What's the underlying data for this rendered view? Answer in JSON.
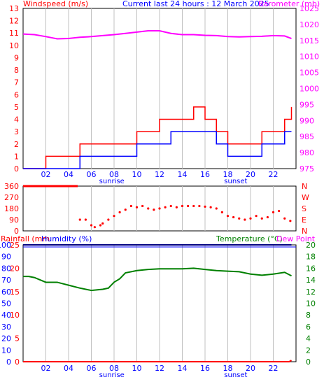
{
  "header": {
    "left_label": "Windspeed (m/s)",
    "center_label": "Current last 24 hours : 12 March 2025",
    "right_label": "Barometer (mb)"
  },
  "bottom_header": {
    "rainfall_label": "Rainfall (mm",
    "humidity_label": "Humidity (%)",
    "temperature_label": "Temperature (°C)",
    "dewpoint_label": "Dew Point"
  },
  "colors": {
    "wind": "#ff0000",
    "gust": "#ff0000",
    "avg": "#0000ff",
    "baro": "#ff00ff",
    "dir": "#ff0000",
    "humidity": "#000080",
    "temperature": "#008000",
    "rain": "#ff0000",
    "axis_left": "#ff0000",
    "axis_right": "#ff00ff"
  },
  "x_axis": {
    "hour_ticks": [
      "02",
      "04",
      "06",
      "08",
      "10",
      "12",
      "14",
      "16",
      "18",
      "20",
      "22"
    ],
    "sunrise_label": "sunrise",
    "sunset_label": "sunset"
  },
  "chart_data": [
    {
      "type": "line",
      "name": "wind-barometer",
      "x_range_hours": [
        0,
        24
      ],
      "left_axis": {
        "label": "Windspeed (m/s)",
        "ticks": [
          "0",
          "1",
          "2",
          "3",
          "4",
          "5",
          "6",
          "7",
          "8",
          "9",
          "10",
          "11",
          "12",
          "13"
        ],
        "ylim": [
          0,
          13
        ]
      },
      "right_axis": {
        "label": "Barometer (mb)",
        "ticks": [
          "975",
          "980",
          "985",
          "990",
          "995",
          "1000",
          "1005",
          "1010",
          "1015",
          "1020",
          "1025"
        ],
        "ylim": [
          975,
          1025
        ]
      },
      "series": [
        {
          "name": "Barometer",
          "x": [
            0,
            1,
            2,
            3,
            4,
            5,
            6,
            7,
            8,
            9,
            10,
            11,
            12,
            13,
            14,
            15,
            16,
            17,
            18,
            19,
            20,
            21,
            22,
            23,
            23.6
          ],
          "values": [
            1017,
            1016.8,
            1016.2,
            1015.5,
            1015.6,
            1016,
            1016.2,
            1016.5,
            1016.8,
            1017.2,
            1017.6,
            1018,
            1018,
            1017.2,
            1016.8,
            1016.8,
            1016.6,
            1016.5,
            1016.2,
            1016.1,
            1016.2,
            1016.3,
            1016.5,
            1016.4,
            1015.6
          ]
        },
        {
          "name": "Gust",
          "x": [
            0,
            1,
            2,
            3,
            4,
            5,
            6,
            7,
            8,
            9,
            10,
            11,
            12,
            13,
            14,
            15,
            16,
            17,
            18,
            19,
            20,
            21,
            22,
            23,
            23.6
          ],
          "values": [
            0,
            0,
            1,
            1,
            1,
            2,
            2,
            2,
            2,
            2,
            3,
            3,
            4,
            4,
            4,
            5,
            4,
            3,
            2,
            2,
            2,
            3,
            3,
            4,
            5
          ]
        },
        {
          "name": "Average",
          "x": [
            0,
            1,
            2,
            3,
            4,
            5,
            6,
            7,
            8,
            9,
            10,
            11,
            12,
            13,
            14,
            15,
            16,
            17,
            18,
            19,
            20,
            21,
            22,
            23,
            23.6
          ],
          "values": [
            0,
            0,
            0,
            0,
            0,
            1,
            1,
            1,
            1,
            1,
            2,
            2,
            2,
            3,
            3,
            3,
            3,
            2,
            1,
            1,
            1,
            2,
            2,
            3,
            3
          ]
        }
      ]
    },
    {
      "type": "scatter",
      "name": "wind-direction",
      "y_axis_ticks": [
        "360",
        "270",
        "180",
        "90",
        "0"
      ],
      "compass_labels": [
        "N",
        "W",
        "S",
        "E",
        "N"
      ],
      "ylim": [
        0,
        360
      ],
      "segments": [
        {
          "x_start": 0,
          "x_end": 4.8,
          "value": 360
        }
      ],
      "x": [
        5,
        5.5,
        6,
        6.3,
        6.8,
        7,
        7.5,
        8,
        8.5,
        9,
        9.5,
        10,
        10.5,
        11,
        11.5,
        12,
        12.5,
        13,
        13.5,
        14,
        14.5,
        15,
        15.5,
        16,
        16.5,
        17,
        17.5,
        18,
        18.5,
        19,
        19.5,
        20,
        20.5,
        21,
        21.5,
        22,
        22.5,
        23,
        23.5
      ],
      "values": [
        90,
        90,
        45,
        30,
        45,
        60,
        90,
        120,
        150,
        170,
        200,
        190,
        200,
        180,
        170,
        180,
        190,
        200,
        190,
        200,
        200,
        200,
        200,
        195,
        190,
        180,
        150,
        120,
        110,
        100,
        90,
        100,
        120,
        100,
        110,
        150,
        160,
        100,
        80
      ]
    },
    {
      "type": "line",
      "name": "humidity-temperature",
      "left_axis_humidity": {
        "label": "Humidity (%)",
        "ticks": [
          "0",
          "10",
          "20",
          "30",
          "40",
          "50",
          "60",
          "70",
          "80",
          "90",
          "100"
        ],
        "ylim": [
          0,
          100
        ]
      },
      "left_axis_rain": {
        "label": "Rainfall (mm",
        "ticks": [
          "0",
          "5",
          "10",
          "15",
          "20",
          "25"
        ],
        "ylim": [
          0,
          25
        ]
      },
      "right_axis": {
        "label": "Temperature (°C)",
        "ticks": [
          "0",
          "2",
          "4",
          "6",
          "8",
          "10",
          "12",
          "14",
          "16",
          "18",
          "20"
        ],
        "ylim": [
          0,
          20
        ]
      },
      "series": [
        {
          "name": "Temperature",
          "x": [
            0,
            0.5,
            1,
            2,
            3,
            4,
            5,
            6,
            7,
            7.5,
            8,
            8.5,
            9,
            10,
            11,
            12,
            13,
            14,
            15,
            16,
            17,
            18,
            19,
            20,
            21,
            22,
            23,
            23.6
          ],
          "values": [
            14.6,
            14.6,
            14.4,
            13.6,
            13.6,
            13.1,
            12.6,
            12.2,
            12.4,
            12.6,
            13.6,
            14.2,
            15.2,
            15.6,
            15.8,
            15.9,
            15.9,
            15.9,
            16.0,
            15.8,
            15.6,
            15.5,
            15.4,
            15.0,
            14.8,
            15.0,
            15.3,
            14.7
          ]
        },
        {
          "name": "Humidity",
          "x": [
            0,
            23.6
          ],
          "values": [
            100,
            100
          ]
        },
        {
          "name": "Rainfall",
          "x": [
            0,
            23.4,
            23.6
          ],
          "values": [
            0,
            0,
            0.3
          ]
        }
      ]
    }
  ]
}
